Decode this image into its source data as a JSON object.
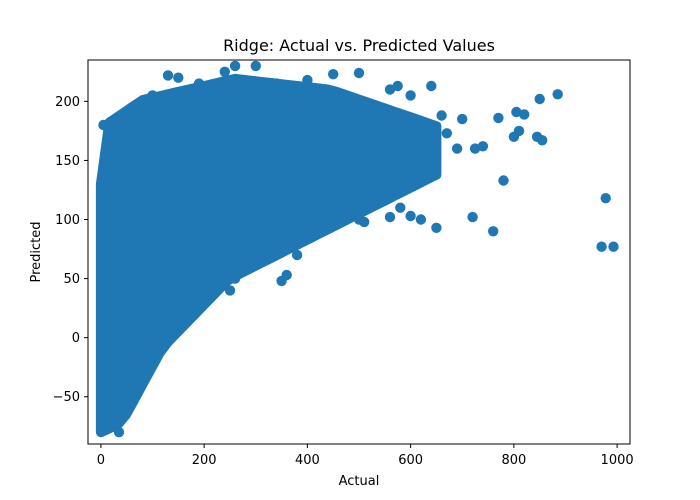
{
  "chart_data": {
    "type": "scatter",
    "title": "Ridge: Actual vs. Predicted Values",
    "xlabel": "Actual",
    "ylabel": "Predicted",
    "xlim": [
      -25,
      1025
    ],
    "ylim": [
      -90,
      235
    ],
    "xticks": [
      0,
      200,
      400,
      600,
      800,
      1000
    ],
    "yticks": [
      -50,
      0,
      50,
      100,
      150,
      200
    ],
    "grid": false,
    "legend": "none",
    "color": "#1f77b4",
    "points": [
      [
        2,
        -75
      ],
      [
        5,
        -60
      ],
      [
        8,
        -45
      ],
      [
        10,
        -30
      ],
      [
        12,
        -65
      ],
      [
        15,
        -50
      ],
      [
        20,
        -70
      ],
      [
        25,
        -62
      ],
      [
        30,
        -74
      ],
      [
        35,
        -80
      ],
      [
        40,
        -55
      ],
      [
        45,
        -60
      ],
      [
        50,
        -48
      ],
      [
        60,
        -30
      ],
      [
        70,
        -20
      ],
      [
        80,
        -10
      ],
      [
        100,
        5
      ],
      [
        120,
        20
      ],
      [
        150,
        35
      ],
      [
        180,
        50
      ],
      [
        200,
        60
      ],
      [
        250,
        40
      ],
      [
        260,
        50
      ],
      [
        300,
        75
      ],
      [
        350,
        48
      ],
      [
        360,
        53
      ],
      [
        380,
        70
      ],
      [
        400,
        85
      ],
      [
        420,
        100
      ],
      [
        450,
        115
      ],
      [
        480,
        120
      ],
      [
        500,
        100
      ],
      [
        510,
        98
      ],
      [
        540,
        140
      ],
      [
        560,
        102
      ],
      [
        580,
        110
      ],
      [
        600,
        103
      ],
      [
        620,
        100
      ],
      [
        650,
        93
      ],
      [
        660,
        188
      ],
      [
        670,
        173
      ],
      [
        690,
        160
      ],
      [
        700,
        185
      ],
      [
        720,
        102
      ],
      [
        725,
        160
      ],
      [
        740,
        162
      ],
      [
        760,
        90
      ],
      [
        770,
        186
      ],
      [
        780,
        133
      ],
      [
        800,
        170
      ],
      [
        805,
        191
      ],
      [
        810,
        175
      ],
      [
        820,
        189
      ],
      [
        845,
        170
      ],
      [
        850,
        202
      ],
      [
        855,
        167
      ],
      [
        885,
        206
      ],
      [
        970,
        77
      ],
      [
        978,
        118
      ],
      [
        993,
        77
      ],
      [
        130,
        222
      ],
      [
        150,
        220
      ],
      [
        190,
        215
      ],
      [
        240,
        225
      ],
      [
        260,
        230
      ],
      [
        300,
        230
      ],
      [
        340,
        215
      ],
      [
        400,
        218
      ],
      [
        450,
        223
      ],
      [
        500,
        224
      ],
      [
        560,
        210
      ],
      [
        575,
        213
      ],
      [
        600,
        205
      ],
      [
        640,
        213
      ],
      [
        100,
        205
      ],
      [
        80,
        200
      ],
      [
        60,
        190
      ],
      [
        40,
        184
      ],
      [
        20,
        183
      ],
      [
        5,
        180
      ]
    ]
  }
}
